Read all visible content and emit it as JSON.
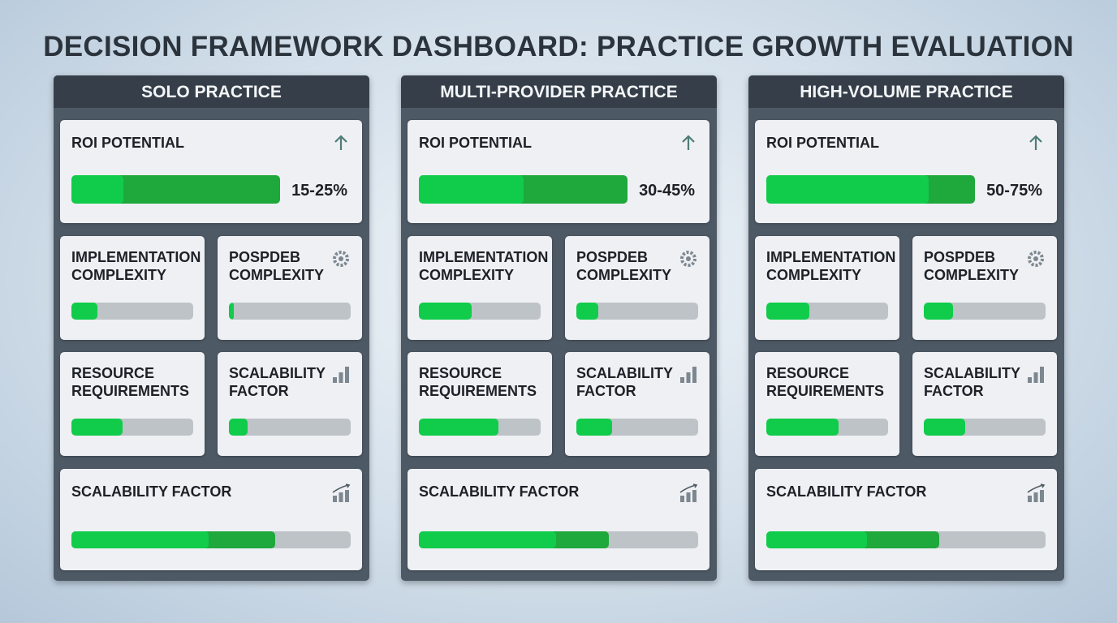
{
  "title": "DECISION FRAMEWORK DASHBOARD: PRACTICE GROWTH EVALUATION",
  "colors": {
    "bar_light": "#10cc4a",
    "bar_dark": "#1fa83b",
    "track": "#bec3c8",
    "panel": "#4d5965",
    "header": "#363f49"
  },
  "panels": [
    {
      "name": "SOLO PRACTICE",
      "roi": {
        "label": "ROI POTENTIAL",
        "icon": "arrow-up-icon",
        "value": "15-25%",
        "light": 0.25,
        "dark": 1.0
      },
      "implementation": {
        "label": "IMPLEMENTATION COMPLEXITY",
        "fill": 0.21
      },
      "posp": {
        "label": "POSPDEB COMPLEXITY",
        "icon": "gear-icon",
        "fill": 0.04
      },
      "resource": {
        "label": "RESOURCE REQUIREMENTS",
        "fill": 0.42
      },
      "scal_small": {
        "label": "SCALABILITY FACTOR",
        "icon": "bar-chart-icon",
        "fill": 0.15
      },
      "scal_large": {
        "label": "SCALABILITY FACTOR",
        "icon": "trend-chart-icon",
        "light": 0.49,
        "dark": 0.73
      }
    },
    {
      "name": "MULTI-PROVIDER PRACTICE",
      "roi": {
        "label": "ROI POTENTIAL",
        "icon": "arrow-up-icon",
        "value": "30-45%",
        "light": 0.5,
        "dark": 1.0
      },
      "implementation": {
        "label": "IMPLEMENTATION COMPLEXITY",
        "fill": 0.43
      },
      "posp": {
        "label": "POSPDEB COMPLEXITY",
        "icon": "gear-icon",
        "fill": 0.18
      },
      "resource": {
        "label": "RESOURCE REQUIREMENTS",
        "fill": 0.65
      },
      "scal_small": {
        "label": "SCALABILITY FACTOR",
        "icon": "bar-chart-icon",
        "fill": 0.29
      },
      "scal_large": {
        "label": "SCALABILITY FACTOR",
        "icon": "trend-chart-icon",
        "light": 0.49,
        "dark": 0.68
      }
    },
    {
      "name": "HIGH-VOLUME PRACTICE",
      "roi": {
        "label": "ROI POTENTIAL",
        "icon": "arrow-up-icon",
        "value": "50-75%",
        "light": 0.78,
        "dark": 1.0
      },
      "implementation": {
        "label": "IMPLEMENTATION COMPLEXITY",
        "fill": 0.35
      },
      "posp": {
        "label": "POSPDEB COMPLEXITY",
        "icon": "gear-icon",
        "fill": 0.24
      },
      "resource": {
        "label": "RESOURCE REQUIREMENTS",
        "fill": 0.59
      },
      "scal_small": {
        "label": "SCALABILITY FACTOR",
        "icon": "bar-chart-icon",
        "fill": 0.34
      },
      "scal_large": {
        "label": "SCALABILITY FACTOR",
        "icon": "trend-chart-icon",
        "light": 0.36,
        "dark": 0.62
      }
    }
  ]
}
